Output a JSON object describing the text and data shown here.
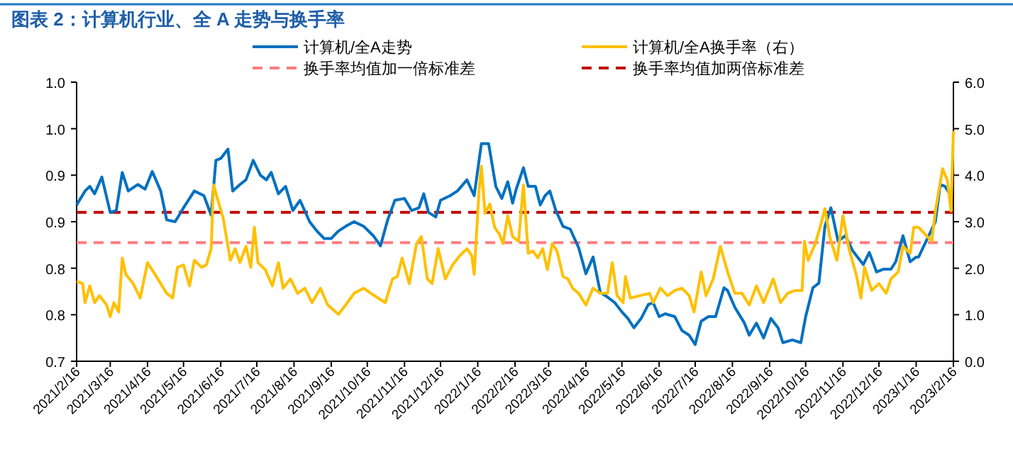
{
  "chart_data": {
    "type": "line",
    "title": "图表 2：计算机行业、全 A 走势与换手率",
    "legend": "top",
    "grid": false,
    "xlim": [
      "2021-02-16",
      "2023-02-16"
    ],
    "xticks": [
      {
        "value": "2021-02-16",
        "label": "2021/2/16"
      },
      {
        "value": "2021-03-16",
        "label": "2021/3/16"
      },
      {
        "value": "2021-04-16",
        "label": "2021/4/16"
      },
      {
        "value": "2021-05-16",
        "label": "2021/5/16"
      },
      {
        "value": "2021-06-16",
        "label": "2021/6/16"
      },
      {
        "value": "2021-07-16",
        "label": "2021/7/16"
      },
      {
        "value": "2021-08-16",
        "label": "2021/8/16"
      },
      {
        "value": "2021-09-16",
        "label": "2021/9/16"
      },
      {
        "value": "2021-10-16",
        "label": "2021/10/16"
      },
      {
        "value": "2021-11-16",
        "label": "2021/11/16"
      },
      {
        "value": "2021-12-16",
        "label": "2021/12/16"
      },
      {
        "value": "2022-01-16",
        "label": "2022/1/16"
      },
      {
        "value": "2022-02-16",
        "label": "2022/2/16"
      },
      {
        "value": "2022-03-16",
        "label": "2022/3/16"
      },
      {
        "value": "2022-04-16",
        "label": "2022/4/16"
      },
      {
        "value": "2022-05-16",
        "label": "2022/5/16"
      },
      {
        "value": "2022-06-16",
        "label": "2022/6/16"
      },
      {
        "value": "2022-07-16",
        "label": "2022/7/16"
      },
      {
        "value": "2022-08-16",
        "label": "2022/8/16"
      },
      {
        "value": "2022-09-16",
        "label": "2022/9/16"
      },
      {
        "value": "2022-10-16",
        "label": "2022/10/16"
      },
      {
        "value": "2022-11-16",
        "label": "2022/11/16"
      },
      {
        "value": "2022-12-16",
        "label": "2022/12/16"
      },
      {
        "value": "2023-01-16",
        "label": "2023/1/16"
      },
      {
        "value": "2023-02-16",
        "label": "2023/2/16"
      }
    ],
    "ylim": [
      0.7,
      1.0
    ],
    "yticks": [
      {
        "value": 0.7,
        "label": "0.7"
      },
      {
        "value": 0.75,
        "label": "0.8"
      },
      {
        "value": 0.8,
        "label": "0.8"
      },
      {
        "value": 0.85,
        "label": "0.9"
      },
      {
        "value": 0.9,
        "label": "0.9"
      },
      {
        "value": 0.95,
        "label": "1.0"
      },
      {
        "value": 1.0,
        "label": "1.0"
      }
    ],
    "y2lim": [
      0,
      6
    ],
    "y2ticks": [
      {
        "value": 0,
        "label": "0.0"
      },
      {
        "value": 1,
        "label": "1.0"
      },
      {
        "value": 2,
        "label": "2.0"
      },
      {
        "value": 3,
        "label": "3.0"
      },
      {
        "value": 4,
        "label": "4.0"
      },
      {
        "value": 5,
        "label": "5.0"
      },
      {
        "value": 6,
        "label": "6.0"
      }
    ],
    "series": [
      {
        "name": "计算机/全A走势",
        "color": "#0070c0",
        "x": [
          "2021-02-16",
          "2021-02-23",
          "2021-02-27",
          "2021-03-03",
          "2021-03-09",
          "2021-03-16",
          "2021-03-21",
          "2021-03-26",
          "2021-03-31",
          "2021-04-08",
          "2021-04-14",
          "2021-04-20",
          "2021-04-27",
          "2021-05-02",
          "2021-05-09",
          "2021-05-16",
          "2021-05-25",
          "2021-06-02",
          "2021-06-08",
          "2021-06-12",
          "2021-06-16",
          "2021-06-22",
          "2021-06-26",
          "2021-07-02",
          "2021-07-07",
          "2021-07-13",
          "2021-07-19",
          "2021-07-24",
          "2021-07-28",
          "2021-08-03",
          "2021-08-09",
          "2021-08-15",
          "2021-08-21",
          "2021-08-29",
          "2021-09-04",
          "2021-09-10",
          "2021-09-16",
          "2021-09-22",
          "2021-09-28",
          "2021-10-05",
          "2021-10-13",
          "2021-10-21",
          "2021-10-27",
          "2021-11-02",
          "2021-11-08",
          "2021-11-16",
          "2021-11-22",
          "2021-11-28",
          "2021-12-02",
          "2021-12-06",
          "2021-12-12",
          "2021-12-16",
          "2021-12-24",
          "2021-12-30",
          "2022-01-07",
          "2022-01-13",
          "2022-01-19",
          "2022-01-25",
          "2022-01-31",
          "2022-02-05",
          "2022-02-10",
          "2022-02-14",
          "2022-02-17",
          "2022-02-23",
          "2022-02-27",
          "2022-03-05",
          "2022-03-09",
          "2022-03-13",
          "2022-03-17",
          "2022-03-22",
          "2022-03-28",
          "2022-04-03",
          "2022-04-10",
          "2022-04-16",
          "2022-04-22",
          "2022-04-28",
          "2022-05-04",
          "2022-05-10",
          "2022-05-16",
          "2022-05-21",
          "2022-05-26",
          "2022-06-01",
          "2022-06-07",
          "2022-06-11",
          "2022-06-16",
          "2022-06-21",
          "2022-06-29",
          "2022-07-05",
          "2022-07-11",
          "2022-07-16",
          "2022-07-21",
          "2022-07-27",
          "2022-08-02",
          "2022-08-09",
          "2022-08-12",
          "2022-08-18",
          "2022-08-26",
          "2022-08-30",
          "2022-09-05",
          "2022-09-11",
          "2022-09-17",
          "2022-09-23",
          "2022-09-27",
          "2022-10-05",
          "2022-10-12",
          "2022-10-16",
          "2022-10-22",
          "2022-10-27",
          "2022-11-01",
          "2022-11-06",
          "2022-11-12",
          "2022-11-18",
          "2022-11-24",
          "2022-12-03",
          "2022-12-08",
          "2022-12-14",
          "2022-12-20",
          "2022-12-26",
          "2022-12-30",
          "2023-01-05",
          "2023-01-11",
          "2023-01-16",
          "2023-01-18",
          "2023-02-01",
          "2023-02-05",
          "2023-02-09",
          "2023-02-13"
        ],
        "values": [
          0.868,
          0.883,
          0.888,
          0.88,
          0.898,
          0.86,
          0.862,
          0.903,
          0.883,
          0.89,
          0.885,
          0.904,
          0.883,
          0.852,
          0.85,
          0.865,
          0.883,
          0.878,
          0.857,
          0.916,
          0.918,
          0.928,
          0.883,
          0.89,
          0.895,
          0.916,
          0.9,
          0.895,
          0.903,
          0.88,
          0.888,
          0.862,
          0.873,
          0.85,
          0.84,
          0.832,
          0.832,
          0.84,
          0.845,
          0.85,
          0.845,
          0.835,
          0.824,
          0.852,
          0.873,
          0.875,
          0.862,
          0.865,
          0.88,
          0.86,
          0.855,
          0.873,
          0.878,
          0.883,
          0.895,
          0.878,
          0.934,
          0.934,
          0.888,
          0.875,
          0.893,
          0.87,
          0.885,
          0.908,
          0.888,
          0.888,
          0.868,
          0.878,
          0.883,
          0.862,
          0.845,
          0.842,
          0.822,
          0.794,
          0.812,
          0.774,
          0.769,
          0.763,
          0.753,
          0.746,
          0.736,
          0.746,
          0.761,
          0.763,
          0.748,
          0.751,
          0.748,
          0.733,
          0.728,
          0.718,
          0.743,
          0.748,
          0.748,
          0.779,
          0.776,
          0.758,
          0.741,
          0.728,
          0.741,
          0.725,
          0.746,
          0.736,
          0.72,
          0.723,
          0.72,
          0.748,
          0.779,
          0.784,
          0.845,
          0.865,
          0.829,
          0.835,
          0.819,
          0.804,
          0.817,
          0.796,
          0.799,
          0.799,
          0.807,
          0.835,
          0.807,
          0.812,
          0.812,
          0.85,
          0.89,
          0.888,
          0.88
        ]
      },
      {
        "name": "计算机/全A换手率（右）",
        "color": "#ffc000",
        "axis": "y2",
        "x": [
          "2021-02-16",
          "2021-02-21",
          "2021-02-23",
          "2021-02-27",
          "2021-03-03",
          "2021-03-07",
          "2021-03-13",
          "2021-03-16",
          "2021-03-19",
          "2021-03-23",
          "2021-03-26",
          "2021-03-29",
          "2021-04-04",
          "2021-04-10",
          "2021-04-16",
          "2021-04-21",
          "2021-04-27",
          "2021-05-02",
          "2021-05-07",
          "2021-05-11",
          "2021-05-16",
          "2021-05-21",
          "2021-05-25",
          "2021-05-31",
          "2021-06-04",
          "2021-06-08",
          "2021-06-10",
          "2021-06-14",
          "2021-06-18",
          "2021-06-24",
          "2021-06-28",
          "2021-07-02",
          "2021-07-07",
          "2021-07-11",
          "2021-07-14",
          "2021-07-17",
          "2021-07-23",
          "2021-07-29",
          "2021-08-03",
          "2021-08-07",
          "2021-08-13",
          "2021-08-19",
          "2021-08-25",
          "2021-08-31",
          "2021-09-07",
          "2021-09-13",
          "2021-09-22",
          "2021-09-28",
          "2021-10-05",
          "2021-10-13",
          "2021-10-19",
          "2021-10-25",
          "2021-10-31",
          "2021-11-06",
          "2021-11-10",
          "2021-11-14",
          "2021-11-20",
          "2021-11-26",
          "2021-11-30",
          "2021-12-05",
          "2021-12-09",
          "2021-12-14",
          "2021-12-20",
          "2021-12-26",
          "2022-01-01",
          "2022-01-07",
          "2022-01-11",
          "2022-01-13",
          "2022-01-17",
          "2022-01-19",
          "2022-01-22",
          "2022-01-26",
          "2022-01-30",
          "2022-02-03",
          "2022-02-06",
          "2022-02-10",
          "2022-02-14",
          "2022-02-19",
          "2022-02-23",
          "2022-02-27",
          "2022-03-03",
          "2022-03-07",
          "2022-03-11",
          "2022-03-15",
          "2022-03-19",
          "2022-03-23",
          "2022-03-28",
          "2022-04-01",
          "2022-04-05",
          "2022-04-10",
          "2022-04-16",
          "2022-04-22",
          "2022-04-28",
          "2022-05-04",
          "2022-05-08",
          "2022-05-12",
          "2022-05-17",
          "2022-05-19",
          "2022-05-23",
          "2022-05-31",
          "2022-06-08",
          "2022-06-11",
          "2022-06-17",
          "2022-06-23",
          "2022-06-29",
          "2022-07-05",
          "2022-07-11",
          "2022-07-15",
          "2022-07-21",
          "2022-07-25",
          "2022-07-31",
          "2022-08-06",
          "2022-08-12",
          "2022-08-18",
          "2022-08-24",
          "2022-08-30",
          "2022-09-05",
          "2022-09-11",
          "2022-09-19",
          "2022-09-25",
          "2022-10-01",
          "2022-10-07",
          "2022-10-13",
          "2022-10-15",
          "2022-10-18",
          "2022-10-24",
          "2022-10-28",
          "2022-11-01",
          "2022-11-05",
          "2022-11-11",
          "2022-11-16",
          "2022-11-21",
          "2022-11-27",
          "2022-12-01",
          "2022-12-04",
          "2022-12-10",
          "2022-12-16",
          "2022-12-22",
          "2022-12-26",
          "2023-01-01",
          "2023-01-05",
          "2023-01-11",
          "2023-01-14",
          "2023-01-18",
          "2023-01-29",
          "2023-02-01",
          "2023-02-07",
          "2023-02-11",
          "2023-02-14",
          "2023-02-16"
        ],
        "values": [
          1.72,
          1.67,
          1.26,
          1.62,
          1.26,
          1.41,
          1.21,
          0.96,
          1.26,
          1.06,
          2.22,
          1.87,
          1.67,
          1.36,
          2.12,
          1.92,
          1.67,
          1.46,
          1.36,
          2.02,
          2.07,
          1.62,
          2.17,
          2.02,
          2.07,
          2.42,
          3.79,
          3.43,
          3.08,
          2.17,
          2.42,
          2.12,
          2.47,
          2.02,
          2.88,
          2.12,
          1.97,
          1.62,
          2.12,
          1.57,
          1.77,
          1.46,
          1.57,
          1.26,
          1.57,
          1.21,
          1.01,
          1.21,
          1.46,
          1.57,
          1.46,
          1.36,
          1.26,
          1.77,
          1.82,
          2.22,
          1.67,
          2.53,
          2.68,
          1.77,
          1.67,
          2.42,
          1.77,
          2.07,
          2.27,
          2.42,
          2.27,
          1.87,
          3.64,
          4.19,
          3.18,
          3.38,
          2.88,
          2.73,
          2.53,
          3.13,
          2.68,
          2.58,
          3.79,
          2.32,
          2.37,
          2.22,
          2.42,
          1.97,
          2.53,
          2.37,
          1.82,
          1.77,
          1.57,
          1.46,
          1.21,
          1.57,
          1.46,
          1.46,
          2.12,
          1.41,
          1.26,
          1.82,
          1.36,
          1.41,
          1.46,
          1.26,
          1.57,
          1.41,
          1.52,
          1.57,
          1.41,
          1.06,
          1.92,
          1.41,
          1.77,
          2.47,
          1.92,
          1.46,
          1.46,
          1.21,
          1.62,
          1.26,
          1.77,
          1.26,
          1.46,
          1.52,
          1.52,
          2.58,
          2.17,
          2.53,
          2.88,
          3.28,
          2.68,
          2.17,
          3.13,
          2.42,
          1.87,
          1.36,
          2.02,
          1.52,
          1.67,
          1.46,
          1.77,
          1.92,
          2.47,
          2.32,
          2.88,
          2.88,
          2.58,
          3.23,
          4.14,
          3.89,
          3.23,
          4.95
        ]
      }
    ],
    "ref_lines": [
      {
        "axis": "y2",
        "value": 2.55,
        "label": "换手率均值加一倍标准差",
        "color": "#ff7c80",
        "line_style": "dashed"
      },
      {
        "axis": "y2",
        "value": 3.2,
        "label": "换手率均值加两倍标准差",
        "color": "#c00000",
        "line_style": "dashed"
      }
    ]
  }
}
